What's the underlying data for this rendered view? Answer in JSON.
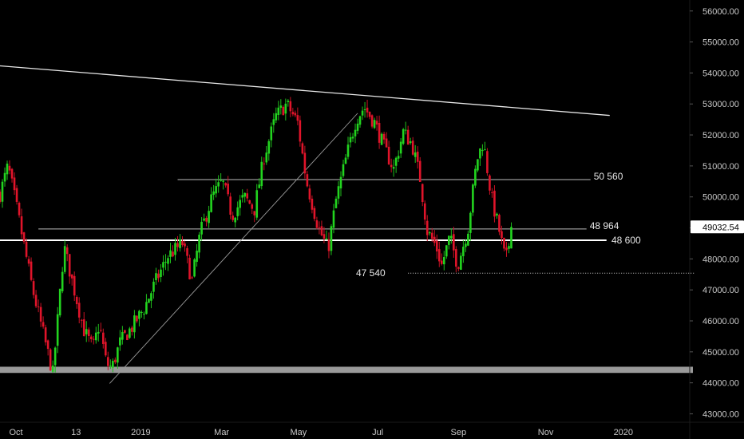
{
  "chart_data": {
    "type": "candlestick",
    "instrument_last_price": "49032.54",
    "colors": {
      "background": "#000000",
      "bull": "#22d41f",
      "bear": "#e0142a",
      "wick_bull": "#1fbf1c",
      "wick_bear": "#c81224",
      "axis_text": "#c9c9c9",
      "level_line": "#ffffff",
      "support_band": "#9a9a9a",
      "price_tag": "#ffffff"
    },
    "y_axis": {
      "ylim": [
        42600,
        56200
      ],
      "ticks": [
        "56000.00",
        "55000.00",
        "54000.00",
        "53000.00",
        "52000.00",
        "51000.00",
        "50000.00",
        "49000.00",
        "48000.00",
        "47000.00",
        "46000.00",
        "45000.00",
        "44000.00",
        "43000.00"
      ]
    },
    "x_axis": {
      "range_index": [
        0,
        860
      ],
      "ticks": [
        {
          "label": "Oct",
          "index": 20
        },
        {
          "label": "13",
          "index": 95
        },
        {
          "label": "2019",
          "index": 176
        },
        {
          "label": "Mar",
          "index": 277
        },
        {
          "label": "May",
          "index": 373
        },
        {
          "label": "Jul",
          "index": 472
        },
        {
          "label": "Sep",
          "index": 573
        },
        {
          "label": "Nov",
          "index": 682
        },
        {
          "label": "2020",
          "index": 779
        }
      ]
    },
    "anchors": [
      [
        0,
        50100
      ],
      [
        10,
        51000
      ],
      [
        22,
        49500
      ],
      [
        40,
        47100
      ],
      [
        52,
        45800
      ],
      [
        66,
        44300
      ],
      [
        73,
        46300
      ],
      [
        80,
        48400
      ],
      [
        90,
        47300
      ],
      [
        105,
        45700
      ],
      [
        116,
        45100
      ],
      [
        124,
        45900
      ],
      [
        133,
        44600
      ],
      [
        140,
        44500
      ],
      [
        150,
        45300
      ],
      [
        165,
        45800
      ],
      [
        180,
        46400
      ],
      [
        195,
        47300
      ],
      [
        210,
        48100
      ],
      [
        228,
        48500
      ],
      [
        240,
        47300
      ],
      [
        250,
        48800
      ],
      [
        265,
        50000
      ],
      [
        278,
        50500
      ],
      [
        290,
        49400
      ],
      [
        305,
        50000
      ],
      [
        318,
        49600
      ],
      [
        330,
        51300
      ],
      [
        345,
        52600
      ],
      [
        358,
        53000
      ],
      [
        372,
        52400
      ],
      [
        383,
        50500
      ],
      [
        398,
        49000
      ],
      [
        410,
        48300
      ],
      [
        420,
        49900
      ],
      [
        432,
        51200
      ],
      [
        445,
        52500
      ],
      [
        455,
        52900
      ],
      [
        468,
        52400
      ],
      [
        480,
        51600
      ],
      [
        492,
        50900
      ],
      [
        504,
        52100
      ],
      [
        515,
        51700
      ],
      [
        525,
        50600
      ],
      [
        534,
        48900
      ],
      [
        545,
        48400
      ],
      [
        552,
        47800
      ],
      [
        562,
        48700
      ],
      [
        572,
        47800
      ],
      [
        585,
        49000
      ],
      [
        596,
        51200
      ],
      [
        604,
        51800
      ],
      [
        614,
        50000
      ],
      [
        624,
        48900
      ],
      [
        632,
        47900
      ],
      [
        640,
        49032.54
      ]
    ],
    "levels": [
      {
        "label": "50 560",
        "value": 50560,
        "x_start": 222,
        "x_end": 738,
        "style": "thin"
      },
      {
        "label": "48 964",
        "value": 48964,
        "x_start": 48,
        "x_end": 733,
        "style": "thin"
      },
      {
        "label": "48 600",
        "value": 48600,
        "x_start": 0,
        "x_end": 758,
        "style": "thick"
      },
      {
        "label": "47 540",
        "value": 47540,
        "x_start": 510,
        "x_end": 868,
        "style": "dotted"
      }
    ],
    "support_band": {
      "from": 44320,
      "to": 44520
    },
    "trendlines": [
      {
        "name": "resistance",
        "from": [
          0,
          54230
        ],
        "to": [
          762,
          52630
        ]
      },
      {
        "name": "rising",
        "from": [
          137,
          43980
        ],
        "to": [
          447,
          52700
        ]
      }
    ]
  }
}
